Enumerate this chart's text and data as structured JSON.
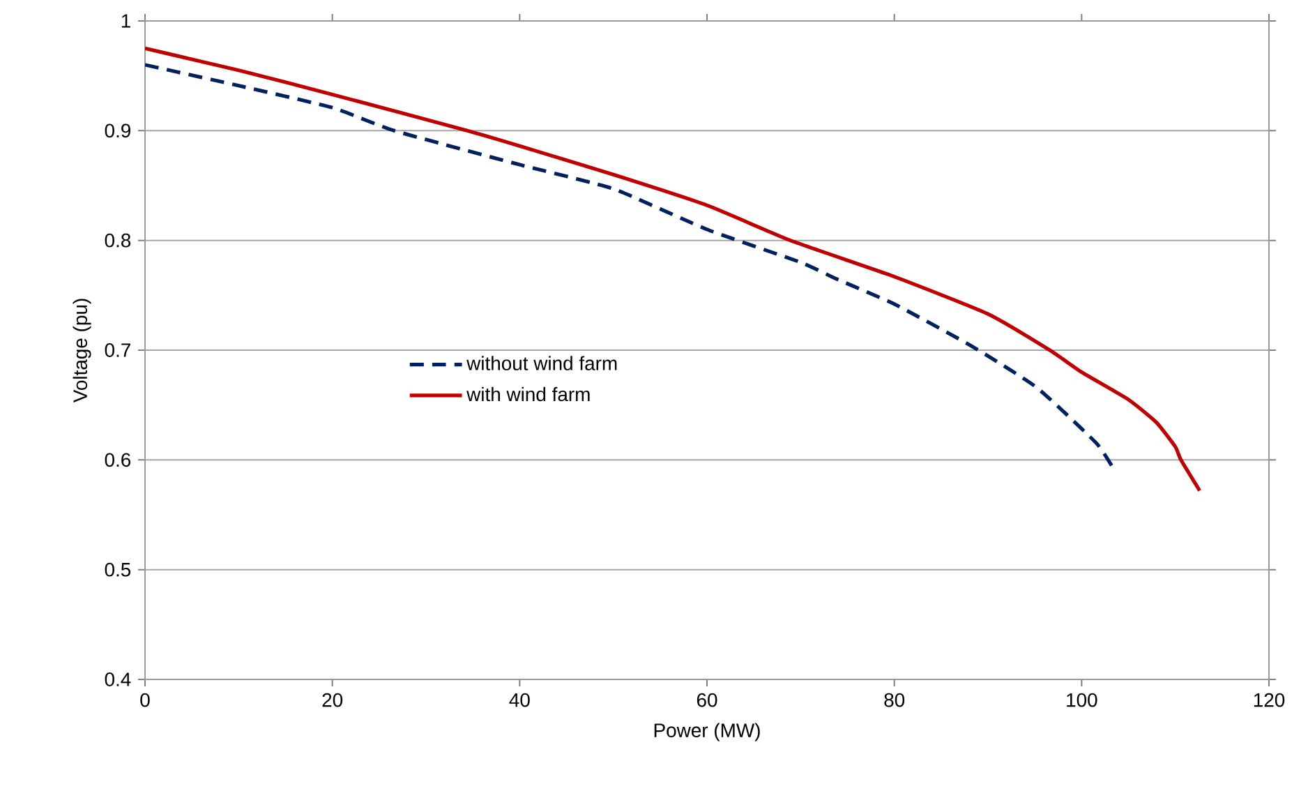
{
  "chart_data": {
    "type": "line",
    "xlabel": "Power (MW)",
    "ylabel": "Voltage (pu)",
    "xlim": [
      0,
      120
    ],
    "xticks": [
      0,
      20,
      40,
      60,
      80,
      100,
      120
    ],
    "ylim": [
      0.4,
      1
    ],
    "yticks": [
      0.4,
      0.5,
      0.6,
      0.7,
      0.8,
      0.9,
      1
    ],
    "grid": "y",
    "legend": "left",
    "marker": "none",
    "series": [
      {
        "name": "without wind farm",
        "color": "#002060",
        "line_style": "dashed",
        "x": [
          0,
          10,
          20,
          26.6,
          40,
          50,
          60,
          70,
          73.8,
          80,
          88.2,
          95.2,
          101.6,
          103.6
        ],
        "values": [
          0.96,
          0.941,
          0.921,
          0.9,
          0.869,
          0.847,
          0.81,
          0.78,
          0.765,
          0.742,
          0.704,
          0.666,
          0.615,
          0.589
        ]
      },
      {
        "name": "with wind farm",
        "color": "#c00000",
        "line_style": "solid",
        "x": [
          0,
          10,
          20,
          34.4,
          40,
          50,
          60,
          68.9,
          80,
          90,
          96.6,
          100,
          105,
          108,
          110,
          110.6,
          112.6
        ],
        "values": [
          0.975,
          0.955,
          0.933,
          0.9,
          0.886,
          0.86,
          0.832,
          0.8,
          0.767,
          0.733,
          0.7,
          0.68,
          0.655,
          0.634,
          0.612,
          0.6,
          0.572
        ]
      }
    ]
  }
}
